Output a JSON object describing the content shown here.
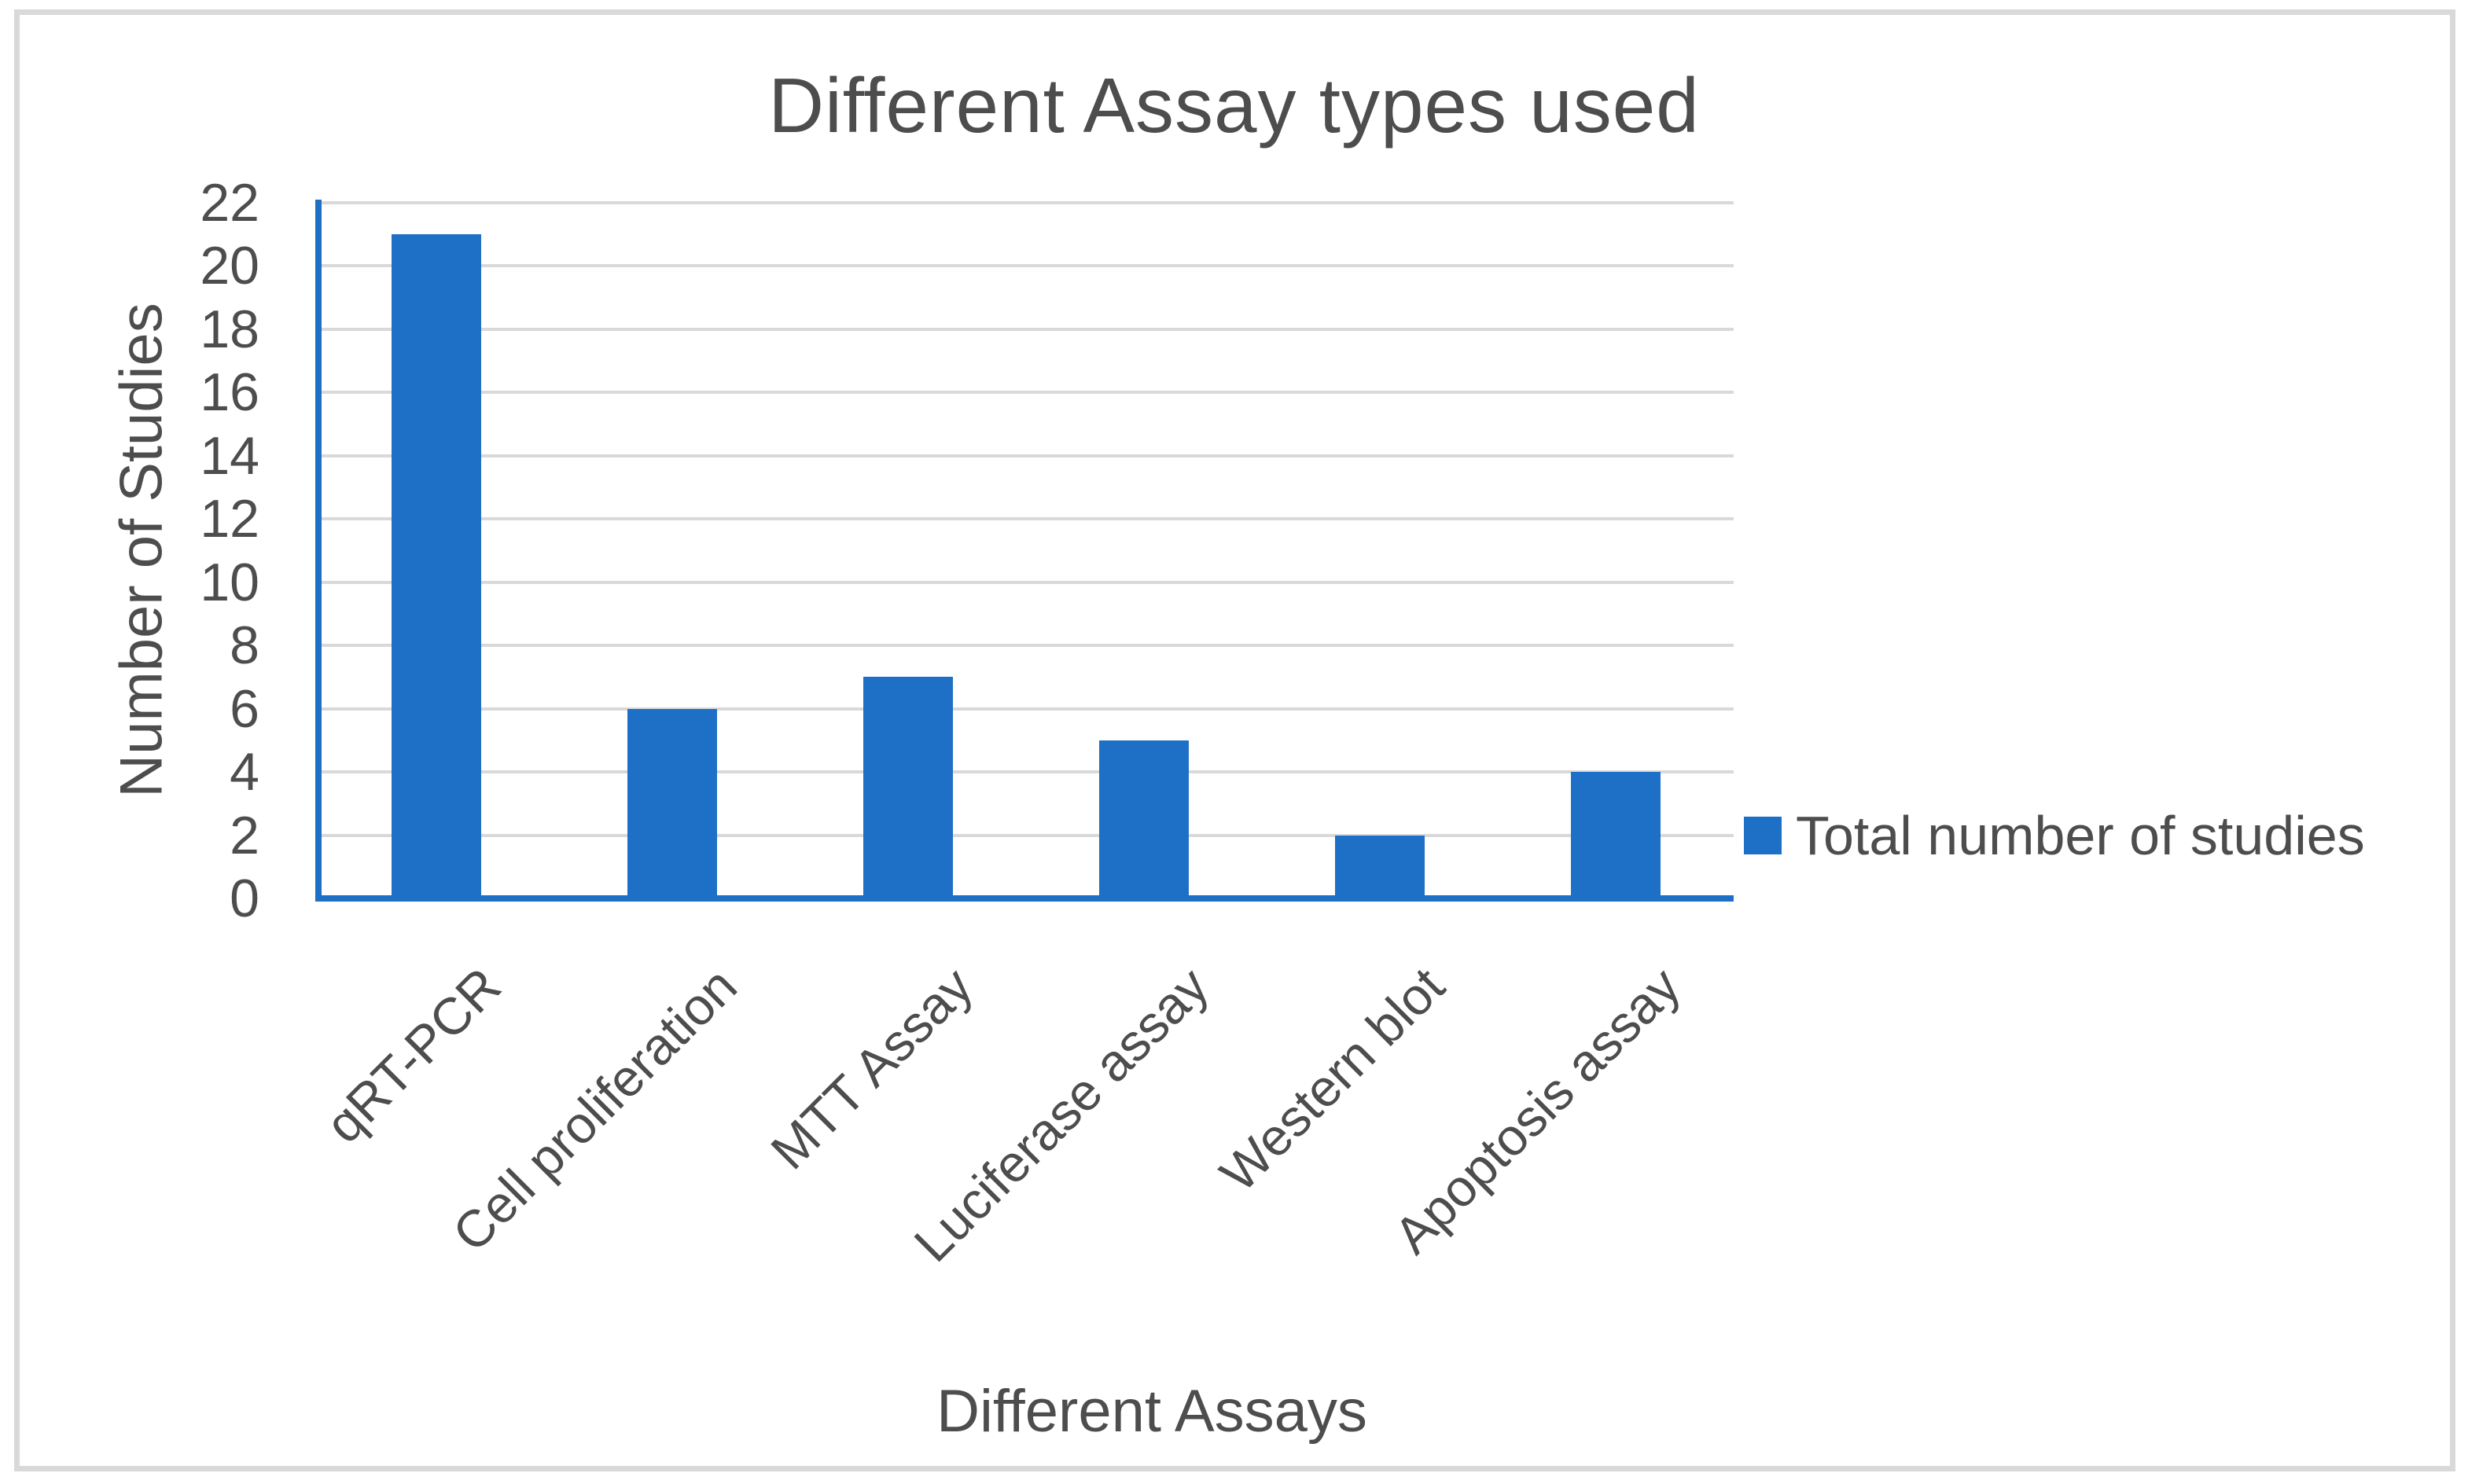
{
  "figure": {
    "title": "Different Assay types used"
  },
  "legend": {
    "marker_icon": "blue-square-icon",
    "label": "Total number of studies"
  },
  "chart_data": {
    "type": "bar",
    "title": "Different Assay types used",
    "categories": [
      "qRT-PCR",
      "Cell proliferation",
      "MTT Assay",
      "Luciferase assay",
      "Western blot",
      "Apoptosis assay"
    ],
    "series": [
      {
        "name": "Total number of studies",
        "values": [
          21,
          6,
          7,
          5,
          2,
          4
        ]
      }
    ],
    "xlabel": "Different Assays",
    "ylabel": "Number of Studies",
    "ylim": [
      0,
      22
    ],
    "yticks": [
      0,
      2,
      4,
      6,
      8,
      10,
      12,
      14,
      16,
      18,
      20,
      22
    ],
    "grid": "horizontal-only",
    "legend_position": "right-middle",
    "category_label_rotation_deg": -45,
    "colors": {
      "bar": "#1e70c7",
      "gridline": "#d9d9d9",
      "axis_line": "#1e70c7",
      "text": "#4d4d4d",
      "frame_border": "#d9d9d9",
      "background": "#ffffff"
    }
  }
}
